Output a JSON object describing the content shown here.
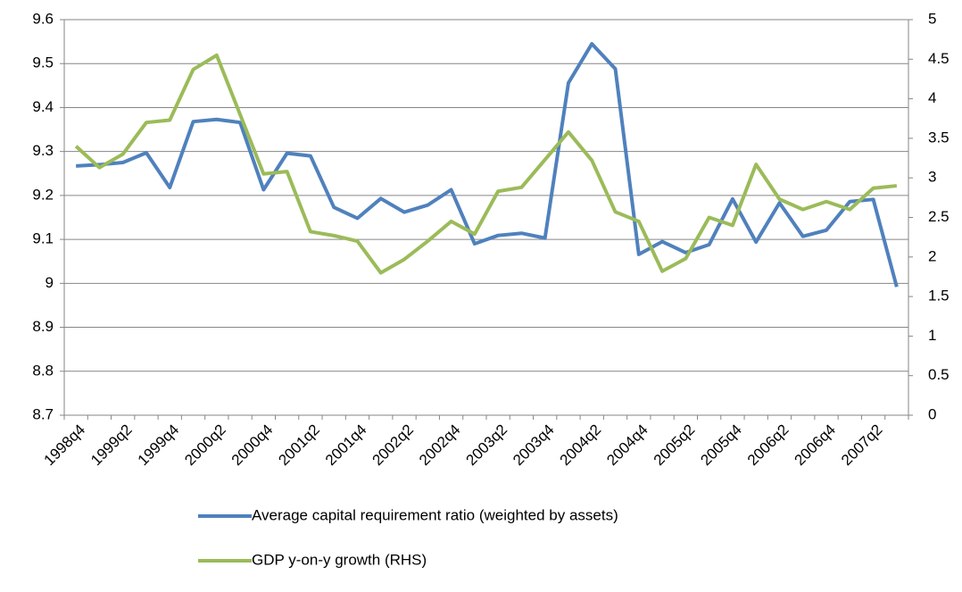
{
  "chart_data": {
    "type": "line",
    "categories": [
      "1998q4",
      null,
      "1999q2",
      null,
      "1999q4",
      null,
      "2000q2",
      null,
      "2000q4",
      null,
      "2001q2",
      null,
      "2001q4",
      null,
      "2002q2",
      null,
      "2002q4",
      null,
      "2003q2",
      null,
      "2003q4",
      null,
      "2004q2",
      null,
      "2004q4",
      null,
      "2005q2",
      null,
      "2005q4",
      null,
      "2006q2",
      null,
      "2006q4",
      null,
      "2007q2",
      null
    ],
    "series": [
      {
        "name": "Average capital requirement ratio (weighted by assets)",
        "color": "#4f81bd",
        "values": [
          9.267,
          9.27,
          9.275,
          9.297,
          9.218,
          9.368,
          9.373,
          9.366,
          9.213,
          9.296,
          9.29,
          9.173,
          9.148,
          9.193,
          9.162,
          9.178,
          9.213,
          9.09,
          9.109,
          9.114,
          9.103,
          9.456,
          9.545,
          9.488,
          9.066,
          9.095,
          9.07,
          9.088,
          9.192,
          9.094,
          9.183,
          9.107,
          9.121,
          9.186,
          9.191,
          8.992
        ]
      },
      {
        "name": "GDP y-on-y growth (RHS)",
        "color": "#9bbb59",
        "axis": "y2",
        "values": [
          3.4,
          3.13,
          3.3,
          3.7,
          3.73,
          4.37,
          4.55,
          3.8,
          3.05,
          3.08,
          2.32,
          2.27,
          2.2,
          1.8,
          1.97,
          2.2,
          2.45,
          2.29,
          2.83,
          2.88,
          3.23,
          3.58,
          3.22,
          2.57,
          2.45,
          1.82,
          1.98,
          2.5,
          2.4,
          3.17,
          2.73,
          2.6,
          2.7,
          2.6,
          2.87,
          2.9
        ]
      }
    ],
    "ylim": [
      8.7,
      9.6
    ],
    "yticks": [
      {
        "value": 8.7,
        "label": "8.7"
      },
      {
        "value": 8.8,
        "label": "8.8"
      },
      {
        "value": 8.9,
        "label": "8.9"
      },
      9,
      {
        "value": 9.1,
        "label": "9.1"
      },
      {
        "value": 9.2,
        "label": "9.2"
      },
      {
        "value": 9.3,
        "label": "9.3"
      },
      {
        "value": 9.4,
        "label": "9.4"
      },
      {
        "value": 9.5,
        "label": "9.5"
      },
      {
        "value": 9.6,
        "label": "9.6"
      }
    ],
    "y2lim": [
      0,
      5
    ],
    "y2ticks": [
      0,
      0.5,
      1,
      1.5,
      2,
      2.5,
      3,
      3.5,
      4,
      4.5,
      5
    ],
    "grid": true,
    "legend": "bottom"
  }
}
